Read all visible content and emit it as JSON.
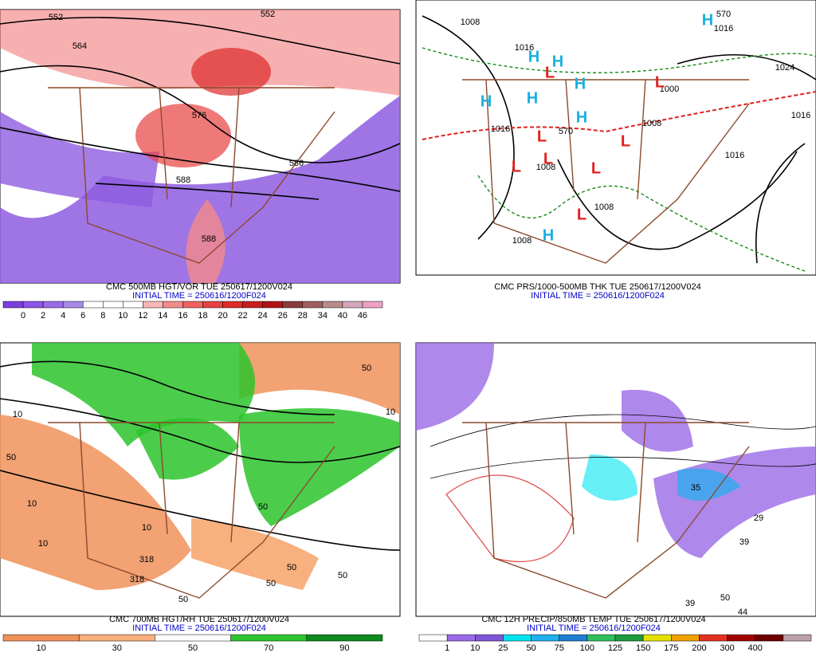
{
  "panels": [
    {
      "caption": "CMC 500MB HGT/VOR TUE 250617/1200V024",
      "initial": "INITIAL TIME = 250616/1200F024",
      "colorbar": {
        "colors": [
          "#7b3fe0",
          "#8c55e8",
          "#9a6ae8",
          "#a78ae8",
          "#ffffff",
          "#ffffff",
          "#ffffff",
          "#f7b7b7",
          "#f48a8a",
          "#ef6262",
          "#e84040",
          "#dd2a2a",
          "#c81e1e",
          "#b01414",
          "#8b3a3a",
          "#a06060",
          "#b88c8c",
          "#d4a8b8",
          "#f0a0c8"
        ],
        "labels": [
          "0",
          "2",
          "4",
          "6",
          "8",
          "10",
          "12",
          "14",
          "16",
          "18",
          "20",
          "22",
          "24",
          "26",
          "28",
          "34",
          "40",
          "46"
        ]
      },
      "contours": [
        "552",
        "564",
        "552",
        "576",
        "588",
        "588",
        "586"
      ]
    },
    {
      "caption": "CMC PRS/1000-500MB THK TUE 250617/1200V024",
      "initial": "INITIAL TIME = 250616/1200F024",
      "contours": [
        "1008",
        "1016",
        "1016",
        "1016",
        "1024",
        "1016",
        "1008",
        "1000",
        "1008",
        "1008",
        "1008",
        "1016",
        "570",
        "570"
      ],
      "symbols": [
        "H",
        "H",
        "H",
        "H",
        "H",
        "H",
        "H",
        "H",
        "L",
        "L",
        "L",
        "L",
        "L",
        "L",
        "L",
        "L"
      ]
    },
    {
      "caption": "CMC 700MB HGT/RH TUE 250617/1200V024",
      "initial": "INITIAL TIME = 250616/1200F024",
      "colorbar": {
        "colors": [
          "#f0925a",
          "#f7b07e",
          "#ffffff",
          "#2cc42c",
          "#0e8a1e"
        ],
        "labels": [
          "10",
          "30",
          "50",
          "70",
          "90"
        ]
      },
      "contours": [
        "10",
        "50",
        "10",
        "10",
        "10",
        "318",
        "318",
        "50",
        "50",
        "50",
        "50",
        "50",
        "10",
        "50"
      ]
    },
    {
      "caption": "CMC 12H PRECIP/850MB TEMP TUE 250617/1200V024",
      "initial": "INITIAL TIME = 250616/1200F024",
      "colorbar": {
        "colors": [
          "#ffffff",
          "#9b6ae6",
          "#7e55d6",
          "#00e4ee",
          "#1fb0ee",
          "#1e7fd0",
          "#2dbf5c",
          "#1c9a3c",
          "#e6e000",
          "#f0a000",
          "#e43020",
          "#a00000",
          "#6e0000",
          "#bca0a8"
        ],
        "labels": [
          "1",
          "10",
          "25",
          "50",
          "75",
          "100",
          "125",
          "150",
          "175",
          "200",
          "300",
          "400"
        ]
      },
      "contours": [
        "35",
        "39",
        "29",
        "39",
        "50",
        "44"
      ]
    }
  ]
}
